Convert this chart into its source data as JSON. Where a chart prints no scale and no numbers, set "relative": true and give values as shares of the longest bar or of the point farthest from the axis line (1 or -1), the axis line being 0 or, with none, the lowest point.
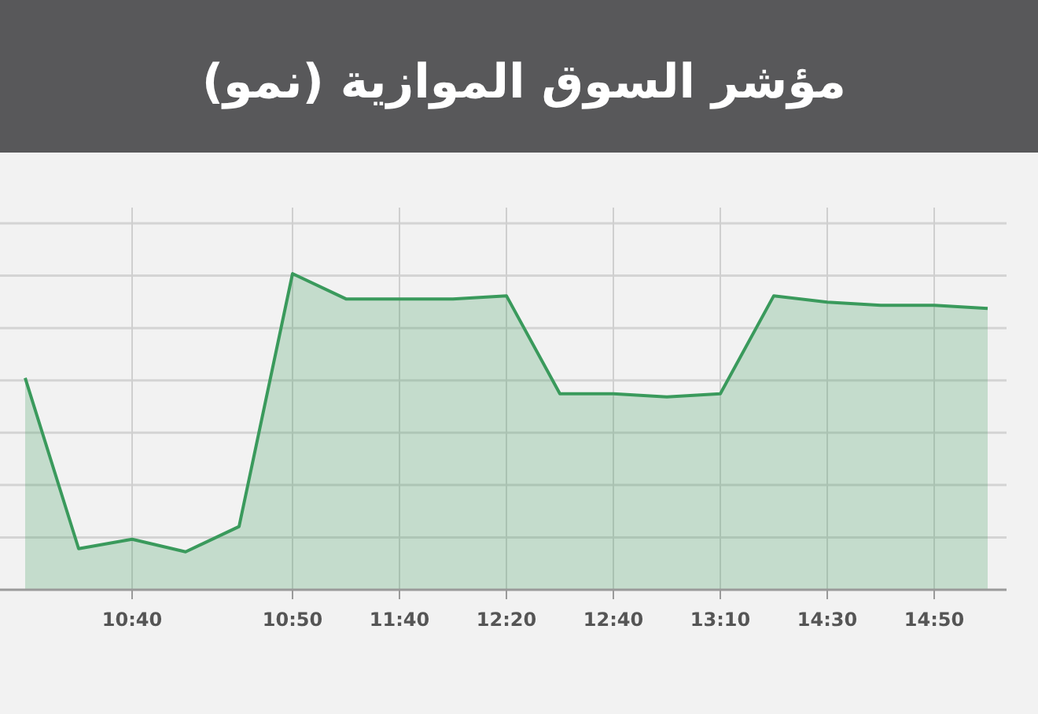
{
  "chart_data": {
    "type": "area",
    "title": "مؤشر السوق الموازية (نمو)",
    "relative": true,
    "categories": [
      null,
      null,
      "10:40",
      null,
      null,
      "10:50",
      null,
      "11:40",
      null,
      "12:20",
      null,
      "12:40",
      null,
      "13:10",
      null,
      "14:30",
      null,
      "14:50",
      null
    ],
    "series": [
      {
        "color": "#3a9a5c",
        "values": [
          0.67,
          0.13,
          0.16,
          0.12,
          0.2,
          1,
          0.92,
          0.92,
          0.92,
          0.93,
          0.62,
          0.62,
          0.61,
          0.62,
          0.93,
          0.91,
          0.9,
          0.9,
          0.89
        ]
      }
    ],
    "grid": true
  }
}
